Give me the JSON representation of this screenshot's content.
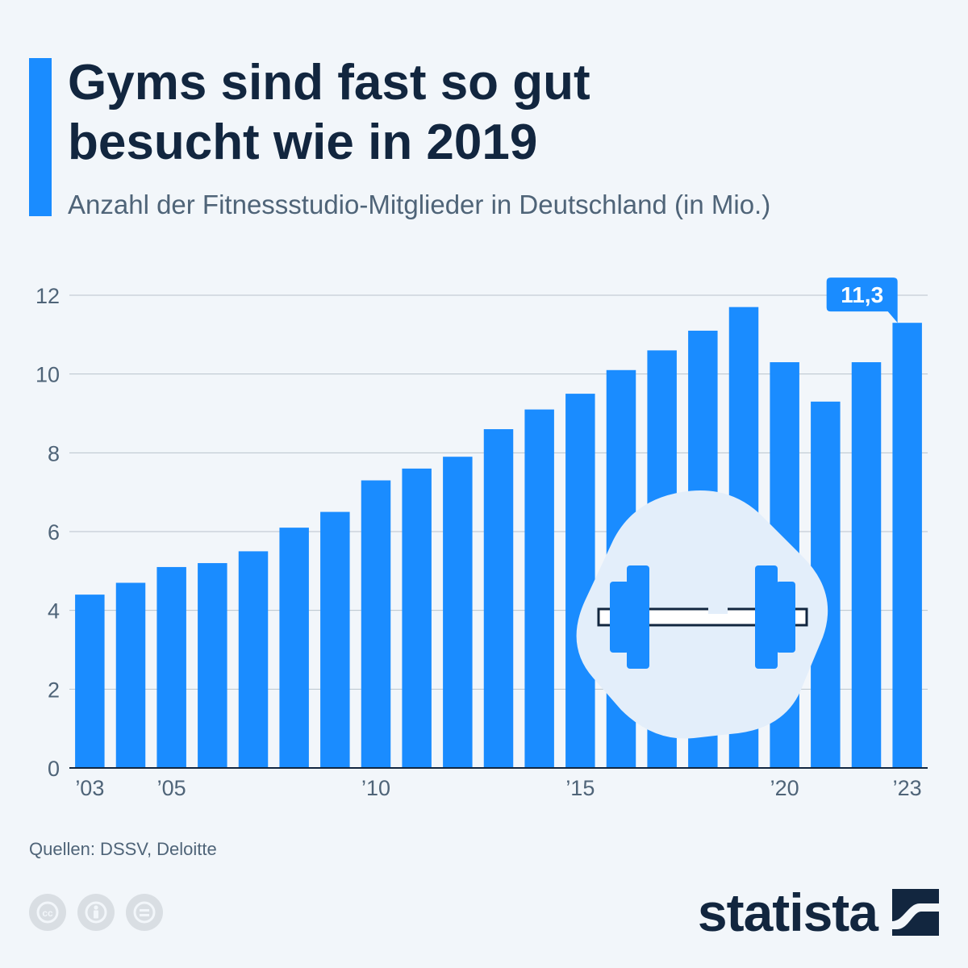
{
  "header": {
    "title_line1": "Gyms sind fast so gut",
    "title_line2": "besucht wie in 2019",
    "subtitle": "Anzahl der Fitnessstudio-Mitglieder in Deutschland (in Mio.)"
  },
  "chart_data": {
    "type": "bar",
    "title": "Gyms sind fast so gut besucht wie in 2019",
    "subtitle": "Anzahl der Fitnessstudio-Mitglieder in Deutschland (in Mio.)",
    "xlabel": "",
    "ylabel": "",
    "categories": [
      2003,
      2004,
      2005,
      2006,
      2007,
      2008,
      2009,
      2010,
      2011,
      2012,
      2013,
      2014,
      2015,
      2016,
      2017,
      2018,
      2019,
      2020,
      2021,
      2022,
      2023
    ],
    "values": [
      4.4,
      4.7,
      5.1,
      5.2,
      5.5,
      6.1,
      6.5,
      7.3,
      7.6,
      7.9,
      8.6,
      9.1,
      9.5,
      10.1,
      10.6,
      11.1,
      11.7,
      10.3,
      9.3,
      10.3,
      11.3
    ],
    "x_tick_labels": [
      {
        "year": 2003,
        "label": "’03"
      },
      {
        "year": 2005,
        "label": "’05"
      },
      {
        "year": 2010,
        "label": "’10"
      },
      {
        "year": 2015,
        "label": "’15"
      },
      {
        "year": 2020,
        "label": "’20"
      },
      {
        "year": 2023,
        "label": "’23"
      }
    ],
    "y_ticks": [
      0,
      2,
      4,
      6,
      8,
      10,
      12
    ],
    "ylim": [
      0,
      12
    ],
    "grid": true,
    "bar_color": "#1a8cff",
    "callout": {
      "year": 2023,
      "label": "11,3"
    },
    "decoration": "dumbbell-icon"
  },
  "footer": {
    "source": "Quellen: DSSV, Deloitte",
    "brand": "statista",
    "license_icons": [
      "cc-icon",
      "attribution-icon",
      "no-derivatives-icon"
    ]
  },
  "colors": {
    "accent": "#1a8cff",
    "title": "#12263f",
    "text": "#4f6478",
    "background": "#f2f6fa"
  }
}
